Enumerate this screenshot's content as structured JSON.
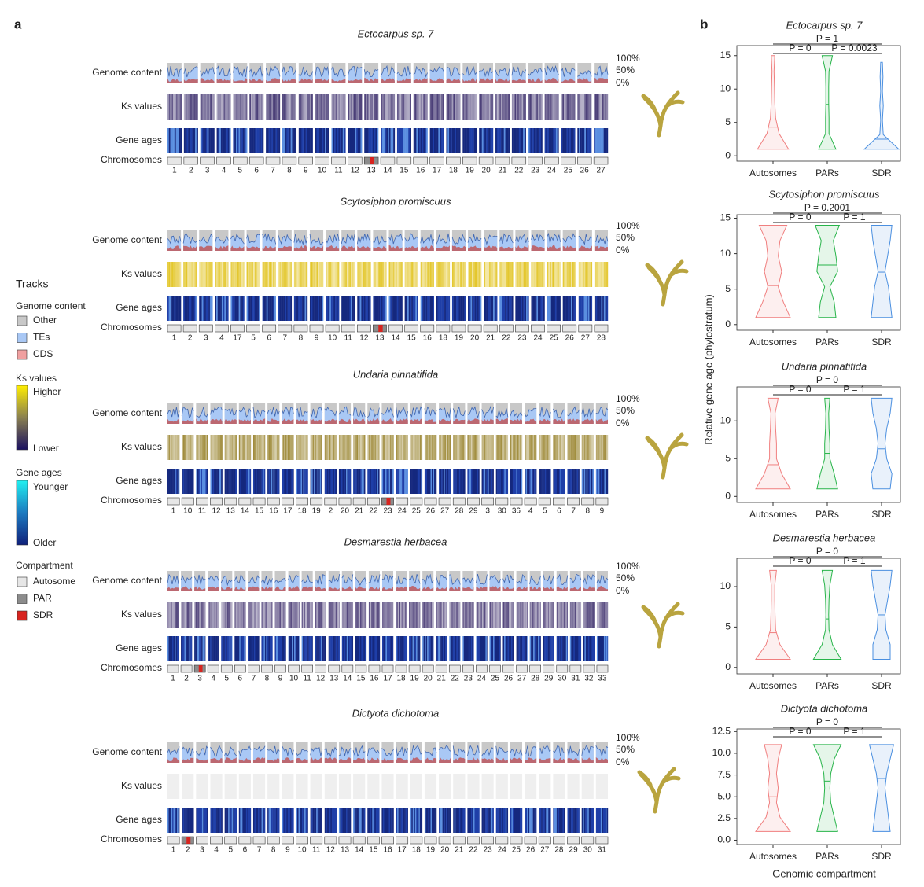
{
  "panel_labels": [
    "a",
    "b"
  ],
  "panel_a": {
    "track_labels": [
      "Genome content",
      "Ks values",
      "Gene ages",
      "Chromosomes"
    ],
    "percent_labels": [
      "100%",
      "50%",
      "0%"
    ],
    "species": [
      {
        "name": "Ectocarpus sp. 7",
        "ks_color": "#4b3f78",
        "sdr_chromosome": "13",
        "chromosomes": [
          "1",
          "2",
          "3",
          "4",
          "5",
          "6",
          "7",
          "8",
          "9",
          "10",
          "11",
          "12",
          "13",
          "14",
          "15",
          "16",
          "17",
          "18",
          "19",
          "20",
          "21",
          "22",
          "23",
          "24",
          "25",
          "26",
          "27"
        ]
      },
      {
        "name": "Scytosiphon promiscuus",
        "ks_color": "#e3c62a",
        "sdr_chromosome": "13",
        "chromosomes": [
          "1",
          "2",
          "3",
          "4",
          "17",
          "5",
          "6",
          "7",
          "8",
          "9",
          "10",
          "11",
          "12",
          "13",
          "14",
          "15",
          "16",
          "18",
          "19",
          "20",
          "21",
          "22",
          "23",
          "24",
          "25",
          "26",
          "27",
          "28"
        ]
      },
      {
        "name": "Undaria pinnatifida",
        "ks_color": "#a08c3c",
        "sdr_chromosome": "23",
        "chromosomes": [
          "1",
          "10",
          "11",
          "12",
          "13",
          "14",
          "15",
          "16",
          "17",
          "18",
          "19",
          "2",
          "20",
          "21",
          "22",
          "23",
          "24",
          "25",
          "26",
          "27",
          "28",
          "29",
          "3",
          "30",
          "36",
          "4",
          "5",
          "6",
          "7",
          "8",
          "9"
        ]
      },
      {
        "name": "Desmarestia herbacea",
        "ks_color": "#55487e",
        "sdr_chromosome": "3",
        "chromosomes": [
          "1",
          "2",
          "3",
          "4",
          "5",
          "6",
          "7",
          "8",
          "9",
          "10",
          "11",
          "12",
          "13",
          "14",
          "15",
          "16",
          "17",
          "18",
          "19",
          "20",
          "21",
          "22",
          "23",
          "24",
          "25",
          "26",
          "27",
          "28",
          "29",
          "30",
          "31",
          "32",
          "33"
        ]
      },
      {
        "name": "Dictyota dichotoma",
        "ks_color": null,
        "sdr_chromosome": "2",
        "chromosomes": [
          "1",
          "2",
          "3",
          "4",
          "5",
          "6",
          "7",
          "8",
          "9",
          "10",
          "11",
          "12",
          "13",
          "14",
          "15",
          "16",
          "17",
          "18",
          "19",
          "20",
          "21",
          "22",
          "23",
          "24",
          "25",
          "26",
          "27",
          "28",
          "29",
          "30",
          "31"
        ]
      }
    ]
  },
  "legend": {
    "title": "Tracks",
    "genome_content": {
      "title": "Genome content",
      "items": [
        {
          "name": "Other",
          "color": "#c8c8c8"
        },
        {
          "name": "TEs",
          "color": "#a9c8f5"
        },
        {
          "name": "CDS",
          "color": "#f0a0a0"
        }
      ]
    },
    "ks": {
      "title": "Ks values",
      "high": "Higher",
      "low": "Lower"
    },
    "gene_ages": {
      "title": "Gene ages",
      "high": "Younger",
      "low": "Older"
    },
    "compartment": {
      "title": "Compartment",
      "items": [
        {
          "name": "Autosome",
          "color": "#e6e6e6"
        },
        {
          "name": "PAR",
          "color": "#8c8c8c"
        },
        {
          "name": "SDR",
          "color": "#d8241f"
        }
      ]
    }
  },
  "panel_b": {
    "ylabel": "Relative gene age (phylostratum)",
    "xlabel": "Genomic compartment"
  },
  "chart_data": [
    {
      "type": "violin",
      "title": "Ectocarpus sp. 7",
      "categories": [
        "Autosomes",
        "PARs",
        "SDR"
      ],
      "ylim": [
        -0.8,
        16.5
      ],
      "yticks": [
        0,
        5,
        10,
        15
      ],
      "violins": [
        {
          "color": "#f07f7f",
          "min": 1,
          "max": 15,
          "mean": 4.3,
          "density": [
            0.9,
            0.35,
            0.15,
            0.1,
            0.08,
            0.06,
            0.1
          ]
        },
        {
          "color": "#27b449",
          "min": 1,
          "max": 15,
          "mean": 7.7,
          "density": [
            0.5,
            0.1,
            0.1,
            0.08,
            0.08,
            0.1,
            0.3
          ]
        },
        {
          "color": "#4a8fe0",
          "min": 1,
          "max": 14,
          "mean": 2.5,
          "density": [
            1,
            0.1,
            0.05,
            0.1,
            0.05,
            0.08,
            0.05
          ]
        }
      ],
      "comparisons": [
        {
          "from": "Autosomes",
          "to": "SDR",
          "label": "P = 1"
        },
        {
          "from": "Autosomes",
          "to": "PARs",
          "label": "P = 0"
        },
        {
          "from": "PARs",
          "to": "SDR",
          "label": "P = 0.0023"
        }
      ]
    },
    {
      "type": "violin",
      "title": "Scytosiphon promiscuus",
      "categories": [
        "Autosomes",
        "PARs",
        "SDR"
      ],
      "ylim": [
        -0.8,
        15.5
      ],
      "yticks": [
        0,
        5,
        10,
        15
      ],
      "violins": [
        {
          "color": "#f07f7f",
          "min": 1,
          "max": 14,
          "mean": 5.5,
          "density": [
            1,
            0.6,
            0.3,
            0.5,
            0.3,
            0.4,
            0.8
          ]
        },
        {
          "color": "#27b449",
          "min": 1,
          "max": 14,
          "mean": 8.4,
          "density": [
            0.5,
            0.4,
            0.15,
            0.6,
            0.5,
            0.35,
            0.7
          ]
        },
        {
          "color": "#4a8fe0",
          "min": 1,
          "max": 14,
          "mean": 7.4,
          "density": [
            0.6,
            0.5,
            0.4,
            0.2,
            0.35,
            0.5,
            0.6
          ]
        }
      ],
      "comparisons": [
        {
          "from": "Autosomes",
          "to": "SDR",
          "label": "P = 0.2001"
        },
        {
          "from": "Autosomes",
          "to": "PARs",
          "label": "P = 0"
        },
        {
          "from": "PARs",
          "to": "SDR",
          "label": "P = 1"
        }
      ]
    },
    {
      "type": "violin",
      "title": "Undaria pinnatifida",
      "categories": [
        "Autosomes",
        "PARs",
        "SDR"
      ],
      "ylim": [
        -0.8,
        14.5
      ],
      "yticks": [
        0,
        5,
        10
      ],
      "violins": [
        {
          "color": "#f07f7f",
          "min": 1,
          "max": 13,
          "mean": 4.2,
          "density": [
            1,
            0.5,
            0.2,
            0.2,
            0.15,
            0.12,
            0.3
          ]
        },
        {
          "color": "#27b449",
          "min": 1,
          "max": 13,
          "mean": 5.7,
          "density": [
            0.6,
            0.4,
            0.15,
            0.15,
            0.1,
            0.08,
            0.15
          ]
        },
        {
          "color": "#4a8fe0",
          "min": 1,
          "max": 13,
          "mean": 6.3,
          "density": [
            0.5,
            0.6,
            0.3,
            0.2,
            0.3,
            0.5,
            0.6
          ]
        }
      ],
      "comparisons": [
        {
          "from": "Autosomes",
          "to": "SDR",
          "label": "P = 0"
        },
        {
          "from": "Autosomes",
          "to": "PARs",
          "label": "P = 0"
        },
        {
          "from": "PARs",
          "to": "SDR",
          "label": "P = 1"
        }
      ]
    },
    {
      "type": "violin",
      "title": "Desmarestia herbacea",
      "categories": [
        "Autosomes",
        "PARs",
        "SDR"
      ],
      "ylim": [
        -0.8,
        13.5
      ],
      "yticks": [
        0,
        5,
        10
      ],
      "violins": [
        {
          "color": "#f07f7f",
          "min": 1,
          "max": 12,
          "mean": 4.3,
          "density": [
            1,
            0.4,
            0.15,
            0.12,
            0.1,
            0.1,
            0.2
          ]
        },
        {
          "color": "#27b449",
          "min": 1,
          "max": 12,
          "mean": 6,
          "density": [
            0.8,
            0.3,
            0.1,
            0.08,
            0.1,
            0.15,
            0.3
          ]
        },
        {
          "color": "#4a8fe0",
          "min": 1,
          "max": 12,
          "mean": 6.5,
          "density": [
            0.5,
            0.5,
            0.25,
            0.2,
            0.35,
            0.5,
            0.6
          ]
        }
      ],
      "comparisons": [
        {
          "from": "Autosomes",
          "to": "SDR",
          "label": "P = 0"
        },
        {
          "from": "Autosomes",
          "to": "PARs",
          "label": "P = 0"
        },
        {
          "from": "PARs",
          "to": "SDR",
          "label": "P = 1"
        }
      ]
    },
    {
      "type": "violin",
      "title": "Dictyota dichotoma",
      "categories": [
        "Autosomes",
        "PARs",
        "SDR"
      ],
      "ylim": [
        -0.5,
        12.8
      ],
      "yticks": [
        {
          "value": 0,
          "label": "0.0"
        },
        {
          "value": 2.5,
          "label": "2.5"
        },
        {
          "value": 5,
          "label": "5.0"
        },
        {
          "value": 7.5,
          "label": "7.5"
        },
        {
          "value": 10,
          "label": "10.0"
        },
        {
          "value": 12.5,
          "label": "12.5"
        }
      ],
      "violins": [
        {
          "color": "#f07f7f",
          "min": 1,
          "max": 11,
          "mean": 5,
          "density": [
            1,
            0.4,
            0.2,
            0.3,
            0.2,
            0.3,
            0.5
          ]
        },
        {
          "color": "#27b449",
          "min": 1,
          "max": 11,
          "mean": 6.8,
          "density": [
            0.6,
            0.4,
            0.2,
            0.15,
            0.2,
            0.4,
            0.8
          ]
        },
        {
          "color": "#4a8fe0",
          "min": 1,
          "max": 11,
          "mean": 7.1,
          "density": [
            0.5,
            0.4,
            0.3,
            0.2,
            0.3,
            0.5,
            0.7
          ]
        }
      ],
      "comparisons": [
        {
          "from": "Autosomes",
          "to": "SDR",
          "label": "P = 0"
        },
        {
          "from": "Autosomes",
          "to": "PARs",
          "label": "P = 0"
        },
        {
          "from": "PARs",
          "to": "SDR",
          "label": "P = 1"
        }
      ]
    }
  ]
}
